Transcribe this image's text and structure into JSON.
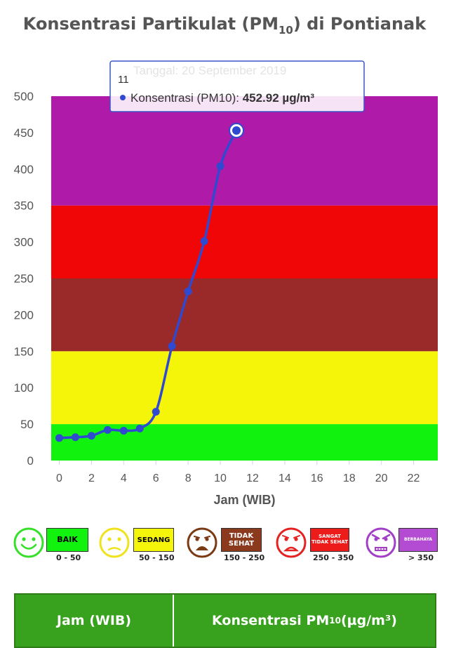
{
  "title": {
    "main": "Konsentrasi Partikulat (PM",
    "sub": "10",
    "suffix": ") di Pontianak"
  },
  "chart_data": {
    "type": "line",
    "xlabel": "Jam (WIB)",
    "ylabel": "",
    "xlim": [
      -0.5,
      23.5
    ],
    "ylim": [
      0,
      500
    ],
    "xticks": [
      0,
      2,
      4,
      6,
      8,
      10,
      12,
      14,
      16,
      18,
      20,
      22
    ],
    "yticks": [
      0,
      50,
      100,
      150,
      200,
      250,
      300,
      350,
      400,
      450,
      500
    ],
    "series": [
      {
        "name": "Konsentrasi (PM10)",
        "color": "#2f49d1",
        "x": [
          0,
          1,
          2,
          3,
          4,
          5,
          6,
          7,
          8,
          9,
          10,
          11
        ],
        "y": [
          31,
          32,
          34,
          42,
          41,
          44,
          67,
          157,
          232,
          301,
          404,
          452.92
        ]
      }
    ],
    "bands": [
      {
        "from": 0,
        "to": 50,
        "color": "#12f20f"
      },
      {
        "from": 50,
        "to": 150,
        "color": "#f5f50a"
      },
      {
        "from": 150,
        "to": 250,
        "color": "#9a2a2a"
      },
      {
        "from": 250,
        "to": 350,
        "color": "#f00606"
      },
      {
        "from": 350,
        "to": 500,
        "color": "#b01aa9"
      }
    ],
    "tooltip": {
      "header": "Tanggal: 20 September 2019",
      "x_label": "11",
      "series_label": "Konsentrasi (PM10): ",
      "value": "452.92 µg/m³",
      "point_index": 11
    }
  },
  "legend": [
    {
      "face": "happy",
      "label": "BAIK",
      "range": "0 - 50",
      "color": "#12f20f",
      "text_color": "#000000",
      "face_color": "#37e02a"
    },
    {
      "face": "sad",
      "label": "SEDANG",
      "range": "50 - 150",
      "color": "#f5f50a",
      "text_color": "#000000",
      "face_color": "#f0e21c"
    },
    {
      "face": "crying",
      "label": "TIDAK SEHAT",
      "range": "150 - 250",
      "color": "#8b3a1e",
      "text_color": "#ffffff",
      "face_color": "#7a3b14"
    },
    {
      "face": "upset",
      "label": "SANGAT TIDAK SEHAT",
      "range": "250 - 350",
      "color": "#ee1b1b",
      "text_color": "#ffffff",
      "face_color": "#e52222"
    },
    {
      "face": "angry",
      "label": "BERBAHAYA",
      "range": "> 350",
      "color": "#b44bd3",
      "text_color": "#ffffff",
      "face_color": "#a23fc7"
    }
  ],
  "table": {
    "col1": "Jam (WIB)",
    "col2_main": "Konsentrasi PM",
    "col2_sub": "10",
    "col2_suffix": " (µg/m³)"
  }
}
